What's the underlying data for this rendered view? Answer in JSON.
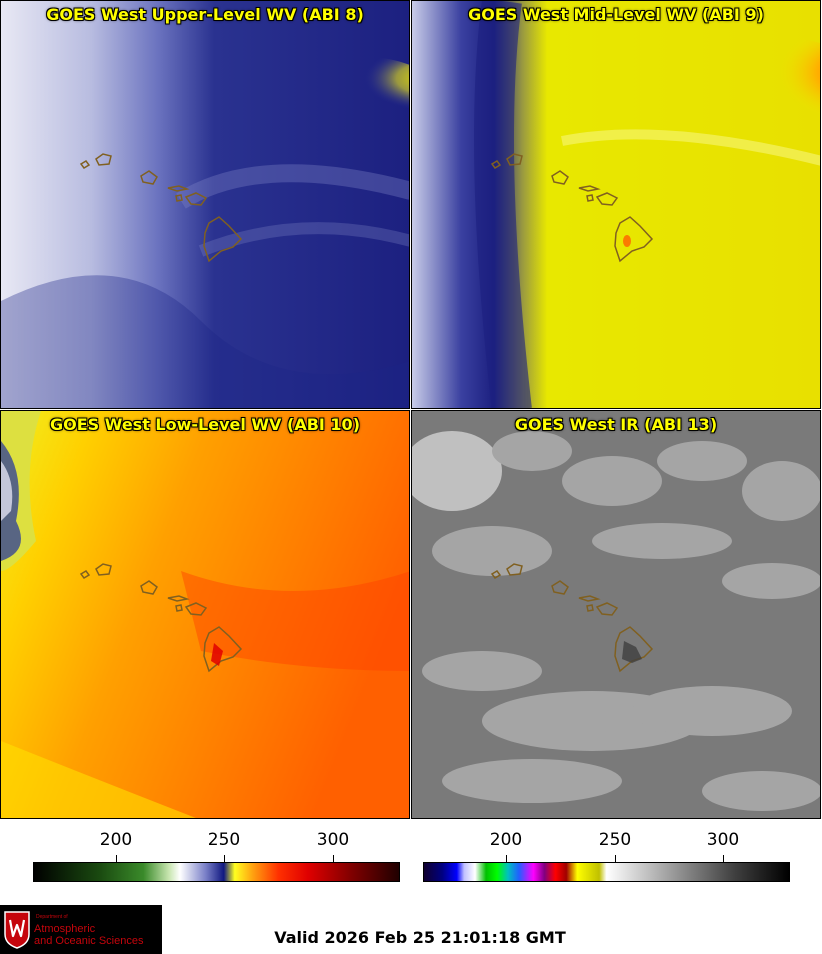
{
  "panels": [
    {
      "title": "GOES West Upper-Level WV (ABI 8)"
    },
    {
      "title": "GOES West Mid-Level WV (ABI 9)"
    },
    {
      "title": "GOES West Low-Level WV (ABI 10)"
    },
    {
      "title": "GOES West IR (ABI 13)"
    }
  ],
  "colorbars": {
    "left": {
      "ticks": [
        "200",
        "250",
        "300"
      ]
    },
    "right": {
      "ticks": [
        "200",
        "250",
        "300"
      ]
    }
  },
  "logo": {
    "line1": "Department of",
    "line2": "Atmospheric",
    "line3": "and Oceanic Sciences"
  },
  "valid_time": "Valid 2026 Feb 25 21:01:18 GMT",
  "colors": {
    "wv_dark_blue": "#101880",
    "wv_yellow": "#f0f000",
    "wv_orange": "#ff7a00",
    "ir_gray": "#7a7a7a",
    "coastline": "#806020",
    "logo_red": "#c5050c"
  }
}
